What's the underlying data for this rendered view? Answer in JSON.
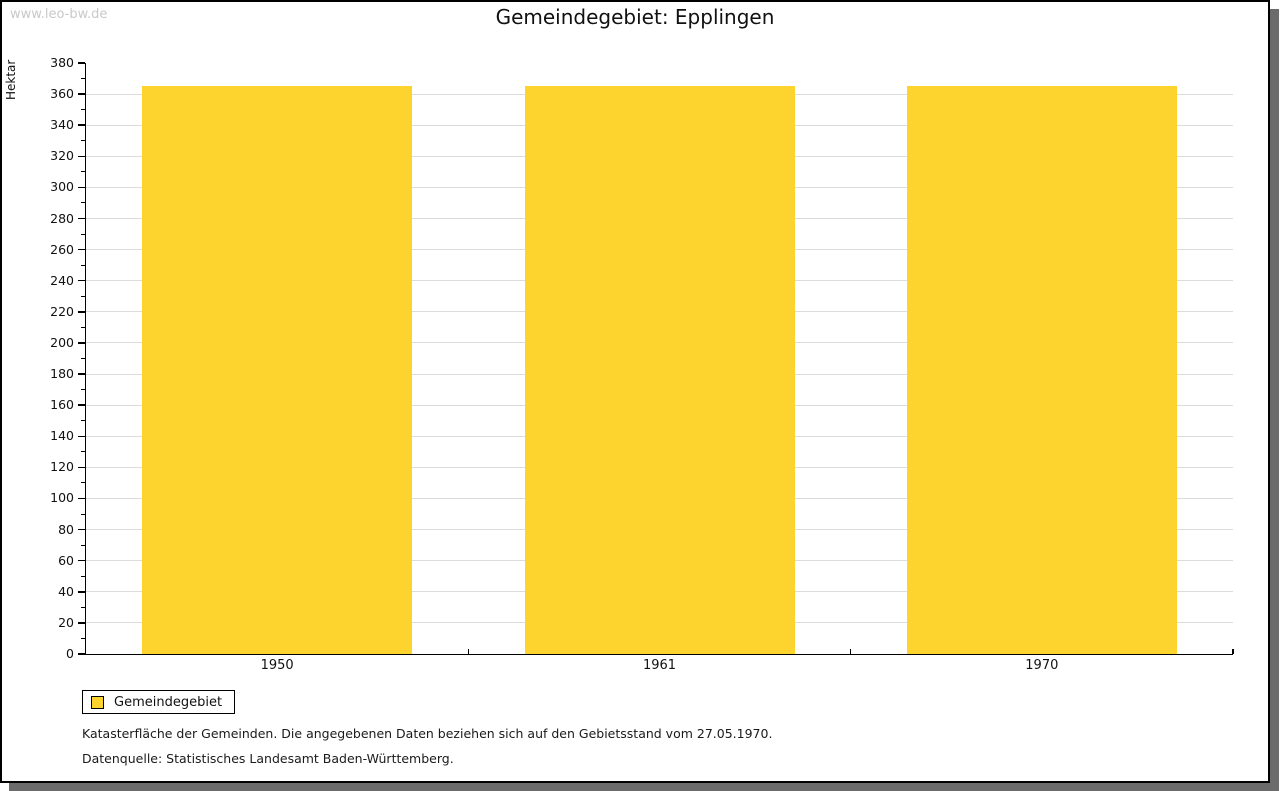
{
  "watermark": "www.leo-bw.de",
  "chart_data": {
    "type": "bar",
    "title": "Gemeindegebiet: Epplingen",
    "categories": [
      "1950",
      "1961",
      "1970"
    ],
    "series": [
      {
        "name": "Gemeindegebiet",
        "values": [
          365,
          365,
          365
        ]
      }
    ],
    "xlabel": "",
    "ylabel": "Hektar",
    "ylim": [
      0,
      380
    ],
    "ytick_step": 20,
    "ytick_minor_step": 10,
    "grid": true,
    "legend_position": "bottom-left",
    "bar_color": "#FCD42D"
  },
  "footer": {
    "line1": "Katasterfläche der Gemeinden. Die angegebenen Daten beziehen sich auf den Gebietsstand vom 27.05.1970.",
    "line2": "Datenquelle: Statistisches Landesamt Baden-Württemberg."
  },
  "colors": {
    "bar": "#FCD42D",
    "grid": "#DCDCDC",
    "axis": "#000000",
    "watermark": "#C9C9C9",
    "frame_shadow": "#6B6B6B"
  }
}
